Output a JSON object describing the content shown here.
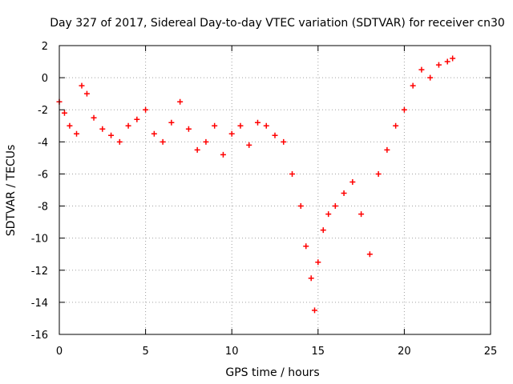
{
  "chart_data": {
    "type": "scatter",
    "title": "Day 327 of 2017, Sidereal Day-to-day VTEC variation (SDTVAR) for receiver cn30",
    "xlabel": "GPS time / hours",
    "ylabel": "SDTVAR / TECUs",
    "xlim": [
      0,
      25
    ],
    "ylim": [
      -16,
      2
    ],
    "xticks": [
      0,
      5,
      10,
      15,
      20,
      25
    ],
    "yticks": [
      -16,
      -14,
      -12,
      -10,
      -8,
      -6,
      -4,
      -2,
      0,
      2
    ],
    "xtick_labels": [
      "0",
      "5",
      "10",
      "15",
      "20",
      "25"
    ],
    "ytick_labels": [
      "-16",
      "-14",
      "-12",
      "-10",
      "-8",
      "-6",
      "-4",
      "-2",
      "0",
      "2"
    ],
    "grid": true,
    "marker": "+",
    "color": "#ff0000",
    "series": [
      {
        "name": "receiver cn30 SDTVAR",
        "x": [
          0.0,
          0.3,
          0.6,
          1.0,
          1.3,
          1.6,
          2.0,
          2.5,
          3.0,
          3.5,
          4.0,
          4.5,
          5.0,
          5.5,
          6.0,
          6.5,
          7.0,
          7.5,
          8.0,
          8.5,
          9.0,
          9.5,
          10.0,
          10.5,
          11.0,
          11.5,
          12.0,
          12.5,
          13.0,
          13.5,
          14.0,
          14.3,
          14.6,
          14.8,
          15.0,
          15.3,
          15.6,
          16.0,
          16.5,
          17.0,
          17.5,
          18.0,
          18.5,
          19.0,
          19.5,
          20.0,
          20.5,
          21.0,
          21.5,
          22.0,
          22.5,
          22.8
        ],
        "y": [
          -1.5,
          -2.2,
          -3.0,
          -3.5,
          -0.5,
          -1.0,
          -2.5,
          -3.2,
          -3.6,
          -4.0,
          -3.0,
          -2.6,
          -2.0,
          -3.5,
          -4.0,
          -2.8,
          -1.5,
          -3.2,
          -4.5,
          -4.0,
          -3.0,
          -4.8,
          -3.5,
          -3.0,
          -4.2,
          -2.8,
          -3.0,
          -3.6,
          -4.0,
          -6.0,
          -8.0,
          -10.5,
          -12.5,
          -14.5,
          -11.5,
          -9.5,
          -8.5,
          -8.0,
          -7.2,
          -6.5,
          -8.5,
          -11.0,
          -6.0,
          -4.5,
          -3.0,
          -2.0,
          -0.5,
          0.5,
          0.0,
          0.8,
          1.0,
          1.2
        ]
      }
    ]
  }
}
